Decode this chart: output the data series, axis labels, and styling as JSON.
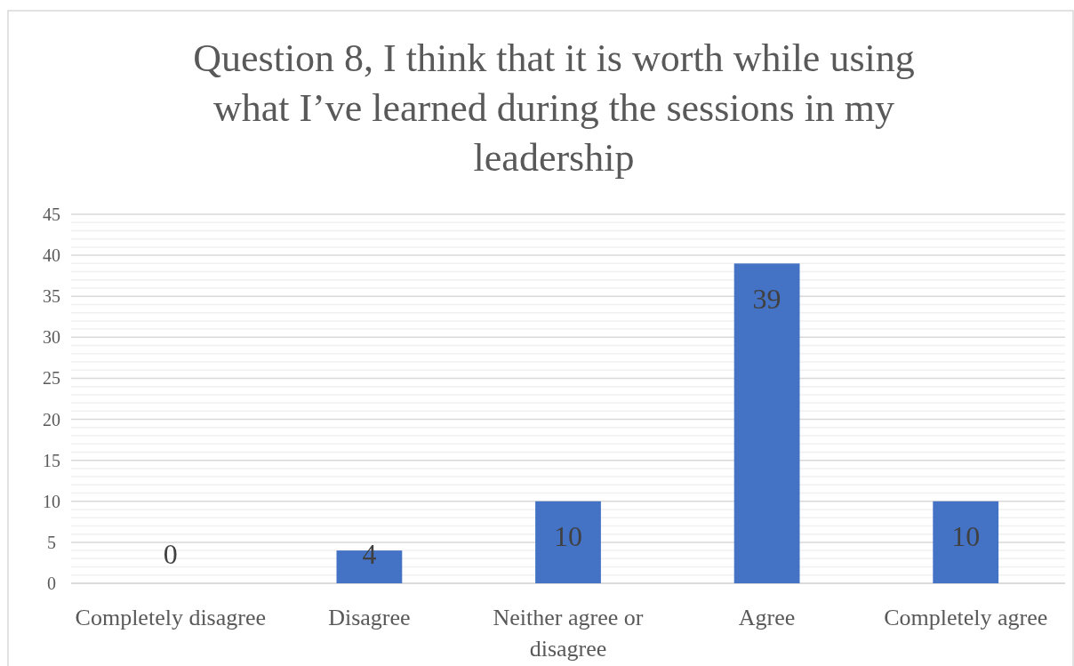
{
  "chart_data": {
    "type": "bar",
    "title": "Question 8, I think that it is worth while using what I’ve learned during the sessions in my leadership",
    "categories": [
      "Completely disagree",
      "Disagree",
      "Neither agree or disagree",
      "Agree",
      "Completely agree"
    ],
    "values": [
      0,
      4,
      10,
      39,
      10
    ],
    "color": "#4472c4",
    "data_labels": true,
    "ylim": [
      0,
      45
    ],
    "yticks": [
      0,
      {
        "value": 1,
        "label": null
      },
      {
        "value": 2,
        "label": null
      },
      {
        "value": 3,
        "label": null
      },
      {
        "value": 4,
        "label": null
      },
      5,
      {
        "value": 6,
        "label": null
      },
      {
        "value": 7,
        "label": null
      },
      {
        "value": 8,
        "label": null
      },
      {
        "value": 9,
        "label": null
      },
      10,
      {
        "value": 11,
        "label": null
      },
      {
        "value": 12,
        "label": null
      },
      {
        "value": 13,
        "label": null
      },
      {
        "value": 14,
        "label": null
      },
      15,
      {
        "value": 16,
        "label": null
      },
      {
        "value": 17,
        "label": null
      },
      {
        "value": 18,
        "label": null
      },
      {
        "value": 19,
        "label": null
      },
      20,
      {
        "value": 21,
        "label": null
      },
      {
        "value": 22,
        "label": null
      },
      {
        "value": 23,
        "label": null
      },
      {
        "value": 24,
        "label": null
      },
      25,
      {
        "value": 26,
        "label": null
      },
      {
        "value": 27,
        "label": null
      },
      {
        "value": 28,
        "label": null
      },
      {
        "value": 29,
        "label": null
      },
      30,
      {
        "value": 31,
        "label": null
      },
      {
        "value": 32,
        "label": null
      },
      {
        "value": 33,
        "label": null
      },
      {
        "value": 34,
        "label": null
      },
      35,
      {
        "value": 36,
        "label": null
      },
      {
        "value": 37,
        "label": null
      },
      {
        "value": 38,
        "label": null
      },
      {
        "value": 39,
        "label": null
      },
      40,
      {
        "value": 41,
        "label": null
      },
      {
        "value": 42,
        "label": null
      },
      {
        "value": 43,
        "label": null
      },
      {
        "value": 44,
        "label": null
      },
      45
    ],
    "grid": true
  }
}
